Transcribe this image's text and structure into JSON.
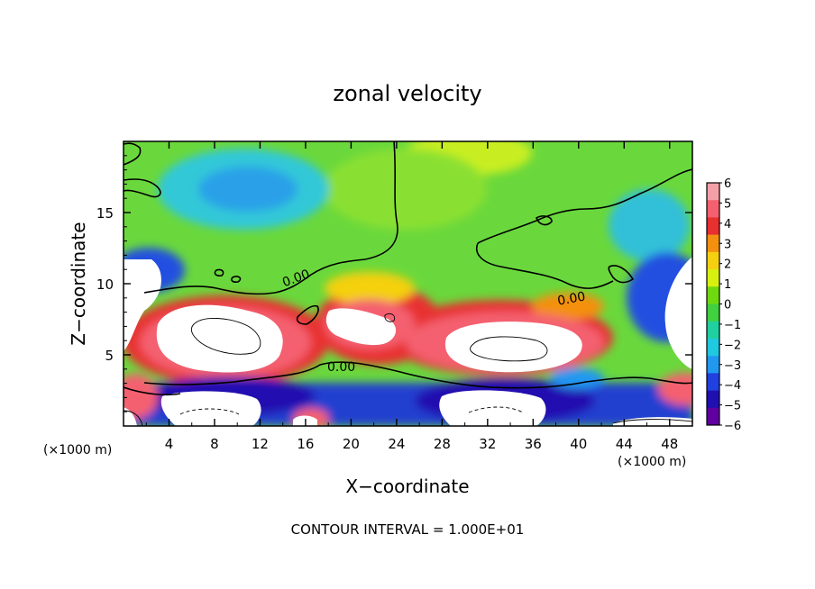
{
  "chart_data": {
    "type": "heatmap",
    "title": "zonal velocity",
    "xlabel": "X−coordinate",
    "ylabel": "Z−coordinate",
    "x_scale_label_left": "(×1000 m)",
    "x_scale_label_right": "(×1000 m)",
    "footer": "CONTOUR INTERVAL = 1.000E+01",
    "xlim": [
      0,
      50
    ],
    "ylim": [
      0,
      20
    ],
    "x_ticks": [
      4,
      8,
      12,
      16,
      20,
      24,
      28,
      32,
      36,
      40,
      44,
      48
    ],
    "x_tick_labels": [
      "4",
      "8",
      "12",
      "16",
      "20",
      "24",
      "28",
      "32",
      "36",
      "40",
      "44",
      "48"
    ],
    "y_ticks": [
      5,
      10,
      15
    ],
    "y_tick_labels": [
      "5",
      "10",
      "15"
    ],
    "colorbar": {
      "min": -6,
      "max": 6,
      "tick_values": [
        6,
        5,
        4,
        3,
        2,
        1,
        0,
        -1,
        -2,
        -3,
        -4,
        -5,
        -6
      ],
      "tick_labels": [
        "6",
        "5",
        "4",
        "3",
        "2",
        "1",
        "0",
        "−1",
        "−2",
        "−3",
        "−4",
        "−5",
        "−6"
      ],
      "colors": [
        "#f4a0a8",
        "#f46070",
        "#e83030",
        "#f49010",
        "#f4d010",
        "#d8f010",
        "#70d810",
        "#40d040",
        "#20d0a0",
        "#20c8e0",
        "#2098f0",
        "#2040e0",
        "#2010b0",
        "#6000a0"
      ]
    },
    "contour_labels": [
      {
        "text": "0.00",
        "x": 15.3,
        "z": 10.8
      },
      {
        "text": "0.00",
        "x": 19.5,
        "z": 4.1
      },
      {
        "text": "0.00",
        "x": 40.2,
        "z": 9.3
      }
    ],
    "features": [
      {
        "kind": "positive-core",
        "x": 9.5,
        "z": 6.2,
        "value": "> 6"
      },
      {
        "kind": "positive-core",
        "x": 33.5,
        "z": 5.5,
        "value": "> 6"
      },
      {
        "kind": "negative-core",
        "x": 2.0,
        "z": 8.0,
        "value": "< -6"
      },
      {
        "kind": "negative-core",
        "x": 47.0,
        "z": 7.0,
        "value": "< -6"
      },
      {
        "kind": "negative-core",
        "x": 9.0,
        "z": 1.2,
        "value": "< -6"
      },
      {
        "kind": "negative-core",
        "x": 33.0,
        "z": 1.2,
        "value": "< -6"
      }
    ]
  }
}
